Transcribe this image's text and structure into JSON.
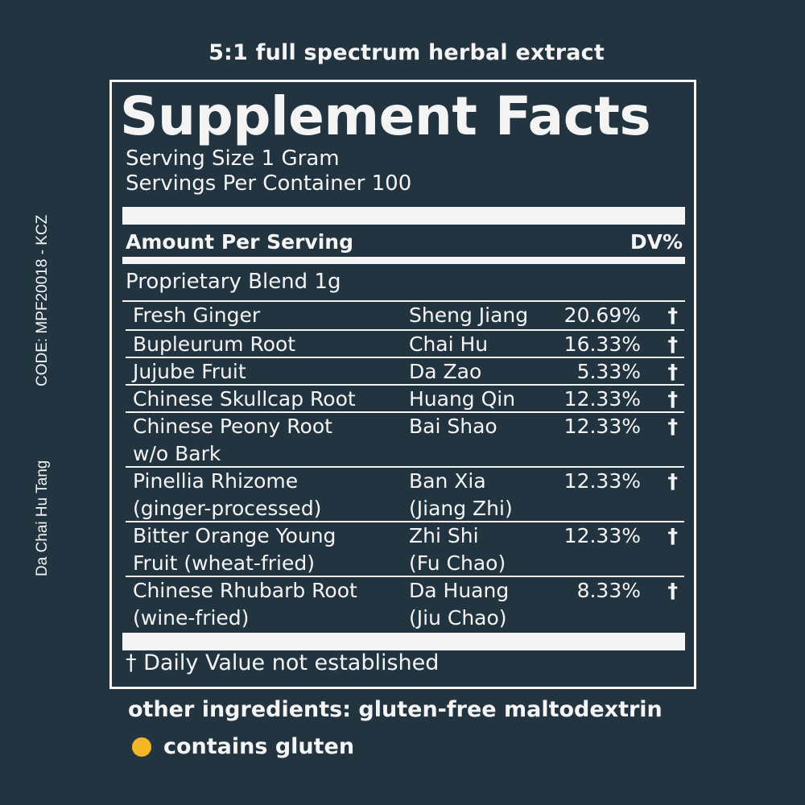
{
  "tagline": "5:1 full spectrum herbal extract",
  "side": {
    "code": "CODE: MPF20018 - KCZ",
    "formula_name": "Da Chai Hu Tang"
  },
  "facts": {
    "title": "Supplement Facts",
    "serving_size": "Serving Size 1 Gram",
    "servings_per_container": "Servings Per Container 100",
    "amount_per_serving": "Amount Per Serving",
    "dv_label": "DV%",
    "blend_title": "Proprietary Blend 1g",
    "ingredients": [
      {
        "name": "Fresh Ginger",
        "pinyin": "Sheng Jiang",
        "percent": "20.69%",
        "dv": "†"
      },
      {
        "name": "Bupleurum Root",
        "pinyin": "Chai Hu",
        "percent": "16.33%",
        "dv": "†"
      },
      {
        "name": "Jujube Fruit",
        "pinyin": "Da Zao",
        "percent": "5.33%",
        "dv": "†"
      },
      {
        "name": "Chinese Skullcap Root",
        "pinyin": "Huang Qin",
        "percent": "12.33%",
        "dv": "†"
      },
      {
        "name": "Chinese Peony Root\nw/o Bark",
        "pinyin": "Bai Shao",
        "percent": "12.33%",
        "dv": "†"
      },
      {
        "name": "Pinellia Rhizome\n(ginger-processed)",
        "pinyin": "Ban Xia\n(Jiang Zhi)",
        "percent": "12.33%",
        "dv": "†"
      },
      {
        "name": "Bitter Orange Young\nFruit (wheat-fried)",
        "pinyin": "Zhi Shi\n(Fu Chao)",
        "percent": "12.33%",
        "dv": "†"
      },
      {
        "name": "Chinese Rhubarb Root\n(wine-fried)",
        "pinyin": "Da Huang\n(Jiu Chao)",
        "percent": "8.33%",
        "dv": "†"
      }
    ],
    "footnote": "† Daily Value not established"
  },
  "other_ingredients": "other ingredients: gluten-free maltodextrin",
  "gluten": {
    "label": "contains gluten",
    "dot_color": "#f2b627"
  }
}
